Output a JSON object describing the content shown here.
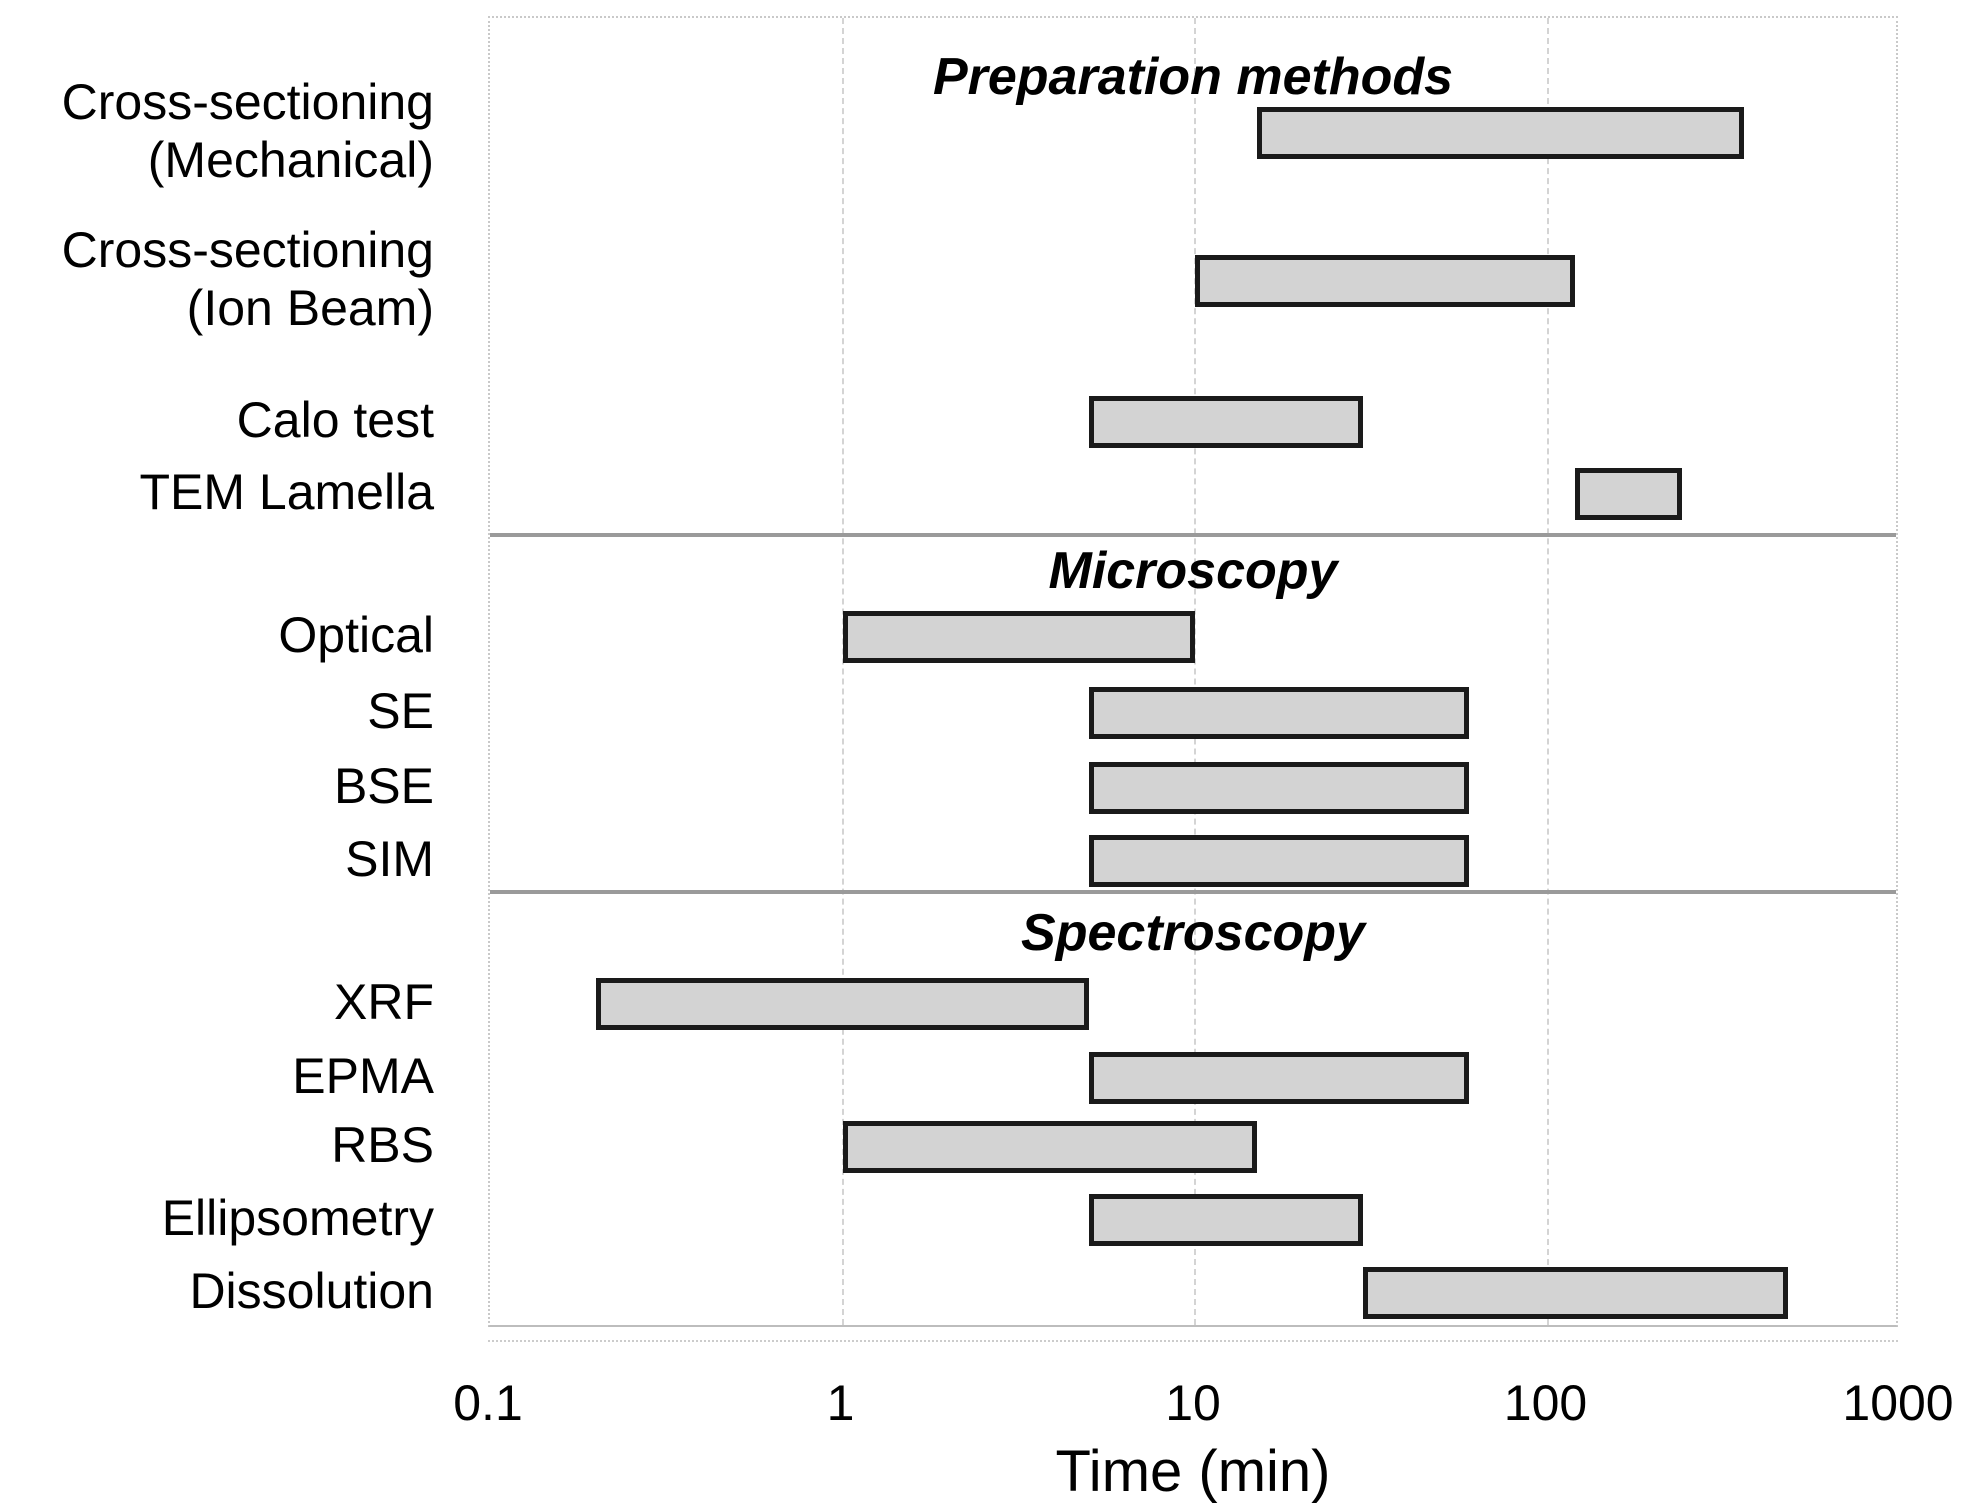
{
  "chart_data": {
    "type": "bar",
    "orientation": "horizontal_range",
    "xlabel": "Time (min)",
    "x_axis": {
      "scale": "log",
      "min": 0.1,
      "max": 1000,
      "ticks": [
        0.1,
        1,
        10,
        100,
        1000
      ]
    },
    "grid": "vertical_only",
    "legend": "none",
    "colors": {
      "bar_fill": "#d3d3d3",
      "bar_border": "#1a1a1a",
      "gridline": "#d4d4d4",
      "separator": "#9a9a9a",
      "text": "#000000"
    },
    "groups": [
      {
        "label": "Preparation methods",
        "items": [
          {
            "label": "Cross-sectioning (Mechanical)",
            "lines": [
              "Cross-sectioning",
              "(Mechanical)"
            ],
            "min": 15,
            "max": 360
          },
          {
            "label": "Cross-sectioning (Ion Beam)",
            "lines": [
              "Cross-sectioning",
              "(Ion Beam)"
            ],
            "min": 10,
            "max": 120
          },
          {
            "label": "Calo test",
            "lines": [
              "Calo test"
            ],
            "min": 5,
            "max": 30
          },
          {
            "label": "TEM Lamella",
            "lines": [
              "TEM Lamella"
            ],
            "min": 120,
            "max": 240
          }
        ]
      },
      {
        "label": "Microscopy",
        "items": [
          {
            "label": "Optical",
            "lines": [
              "Optical"
            ],
            "min": 1,
            "max": 10
          },
          {
            "label": "SE",
            "lines": [
              "SE"
            ],
            "min": 5,
            "max": 60
          },
          {
            "label": "BSE",
            "lines": [
              "BSE"
            ],
            "min": 5,
            "max": 60
          },
          {
            "label": "SIM",
            "lines": [
              "SIM"
            ],
            "min": 5,
            "max": 60
          }
        ]
      },
      {
        "label": "Spectroscopy",
        "items": [
          {
            "label": "XRF",
            "lines": [
              "XRF"
            ],
            "min": 0.2,
            "max": 5
          },
          {
            "label": "EPMA",
            "lines": [
              "EPMA"
            ],
            "min": 5,
            "max": 60
          },
          {
            "label": "RBS",
            "lines": [
              "RBS"
            ],
            "min": 1,
            "max": 15
          },
          {
            "label": "Ellipsometry",
            "lines": [
              "Ellipsometry"
            ],
            "min": 5,
            "max": 30
          },
          {
            "label": "Dissolution",
            "lines": [
              "Dissolution"
            ],
            "min": 30,
            "max": 480
          }
        ]
      }
    ]
  }
}
